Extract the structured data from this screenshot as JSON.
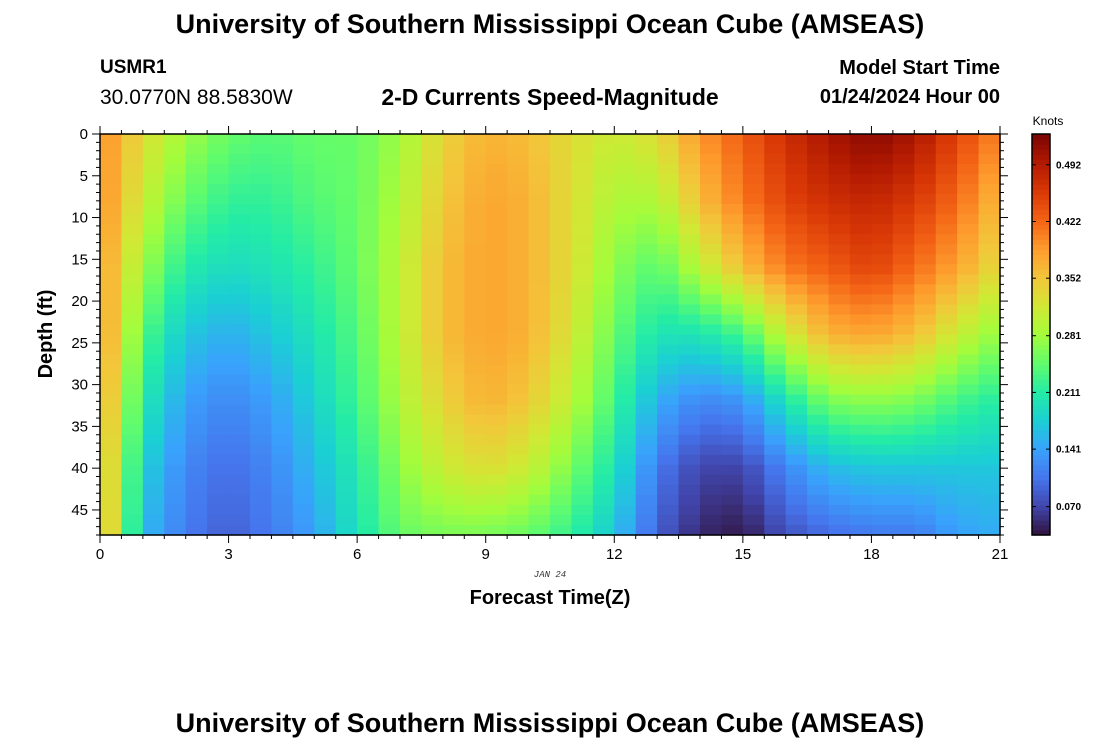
{
  "header": {
    "title": "University of Southern Mississippi Ocean Cube (AMSEAS)",
    "station": "USMR1",
    "coordinates": "30.0770N  88.5830W",
    "subtitle": "2-D Currents Speed-Magnitude",
    "model_start_label": "Model Start Time",
    "model_start_value": "01/24/2024 Hour 00"
  },
  "footer": {
    "title": "University of Southern Mississippi Ocean Cube (AMSEAS)"
  },
  "chart_data": {
    "type": "heatmap",
    "title": "2-D Currents Speed-Magnitude",
    "xlabel": "Forecast Time(Z)",
    "ylabel": "Depth (ft)",
    "date_label": "JAN 24",
    "xlim": [
      0,
      21
    ],
    "ylim": [
      0,
      48
    ],
    "y_inverted": true,
    "x_ticks": [
      0,
      3,
      6,
      9,
      12,
      15,
      18,
      21
    ],
    "y_ticks": [
      0,
      5,
      10,
      15,
      20,
      25,
      30,
      35,
      40,
      45
    ],
    "colorbar": {
      "label": "Knots",
      "min": 0.035,
      "max": 0.53,
      "ticks": [
        "0.070",
        "0.141",
        "0.211",
        "0.281",
        "0.352",
        "0.422",
        "0.492"
      ],
      "colors": [
        "#30123b",
        "#4145ab",
        "#4675ed",
        "#39a2fc",
        "#1bcfd4",
        "#24eca6",
        "#61fc6c",
        "#a4fc3b",
        "#d1e834",
        "#f3c63a",
        "#fe9b2d",
        "#f36315",
        "#d93806",
        "#b11901",
        "#7a0403"
      ]
    },
    "depth_levels_ft": [
      0,
      8,
      16,
      24,
      32,
      40,
      48
    ],
    "time_hours": [
      0,
      1,
      2,
      3,
      4,
      5,
      6,
      7,
      8,
      9,
      10,
      11,
      12,
      13,
      14,
      15,
      16,
      17,
      18,
      19,
      20,
      21
    ],
    "speed_knots": [
      [
        0.4,
        0.4,
        0.39,
        0.4,
        0.39,
        0.38,
        0.39
      ],
      [
        0.33,
        0.31,
        0.28,
        0.24,
        0.21,
        0.18,
        0.16
      ],
      [
        0.28,
        0.25,
        0.21,
        0.17,
        0.14,
        0.12,
        0.11
      ],
      [
        0.25,
        0.22,
        0.19,
        0.15,
        0.12,
        0.1,
        0.09
      ],
      [
        0.24,
        0.22,
        0.2,
        0.17,
        0.14,
        0.12,
        0.11
      ],
      [
        0.25,
        0.24,
        0.22,
        0.2,
        0.18,
        0.16,
        0.14
      ],
      [
        0.25,
        0.25,
        0.25,
        0.24,
        0.23,
        0.21,
        0.2
      ],
      [
        0.28,
        0.29,
        0.3,
        0.3,
        0.29,
        0.27,
        0.25
      ],
      [
        0.34,
        0.35,
        0.36,
        0.36,
        0.34,
        0.31,
        0.26
      ],
      [
        0.37,
        0.38,
        0.38,
        0.38,
        0.37,
        0.33,
        0.26
      ],
      [
        0.36,
        0.37,
        0.37,
        0.37,
        0.35,
        0.31,
        0.25
      ],
      [
        0.33,
        0.33,
        0.33,
        0.32,
        0.3,
        0.26,
        0.22
      ],
      [
        0.31,
        0.29,
        0.27,
        0.25,
        0.23,
        0.2,
        0.17
      ],
      [
        0.33,
        0.29,
        0.24,
        0.2,
        0.15,
        0.11,
        0.09
      ],
      [
        0.39,
        0.36,
        0.3,
        0.2,
        0.12,
        0.07,
        0.05
      ],
      [
        0.43,
        0.41,
        0.36,
        0.23,
        0.13,
        0.07,
        0.04
      ],
      [
        0.47,
        0.45,
        0.41,
        0.31,
        0.2,
        0.12,
        0.08
      ],
      [
        0.5,
        0.47,
        0.43,
        0.37,
        0.26,
        0.16,
        0.1
      ],
      [
        0.52,
        0.48,
        0.45,
        0.38,
        0.27,
        0.17,
        0.11
      ],
      [
        0.5,
        0.46,
        0.42,
        0.36,
        0.26,
        0.17,
        0.11
      ],
      [
        0.45,
        0.42,
        0.38,
        0.31,
        0.23,
        0.17,
        0.14
      ],
      [
        0.4,
        0.36,
        0.33,
        0.27,
        0.21,
        0.17,
        0.15
      ]
    ]
  }
}
